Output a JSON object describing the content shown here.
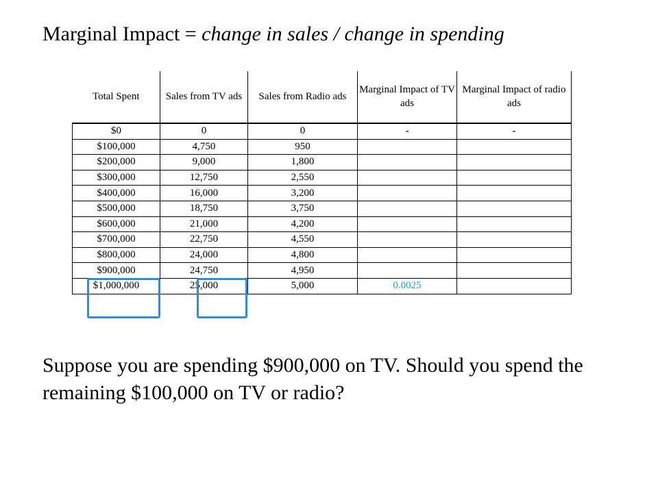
{
  "title": {
    "prefix": "Marginal Impact = ",
    "italic": "change in sales  / change in spending"
  },
  "table": {
    "headers": [
      "Total Spent",
      "Sales from TV ads",
      "Sales from Radio ads",
      "Marginal Impact of TV ads",
      "Marginal Impact of radio ads"
    ],
    "rows": [
      [
        "$0",
        "0",
        "0",
        "-",
        "-"
      ],
      [
        "$100,000",
        "4,750",
        "950",
        "",
        ""
      ],
      [
        "$200,000",
        "9,000",
        "1,800",
        "",
        ""
      ],
      [
        "$300,000",
        "12,750",
        "2,550",
        "",
        ""
      ],
      [
        "$400,000",
        "16,000",
        "3,200",
        "",
        ""
      ],
      [
        "$500,000",
        "18,750",
        "3,750",
        "",
        ""
      ],
      [
        "$600,000",
        "21,000",
        "4,200",
        "",
        ""
      ],
      [
        "$700,000",
        "22,750",
        "4,550",
        "",
        ""
      ],
      [
        "$800,000",
        "24,000",
        "4,800",
        "",
        ""
      ],
      [
        "$900,000",
        "24,750",
        "4,950",
        "",
        ""
      ],
      [
        "$1,000,000",
        "25,000",
        "5,000",
        "0.0025",
        ""
      ]
    ],
    "highlight_color": "#2a8fd6",
    "answer_color": "#1aa3c7"
  },
  "question": "Suppose you are spending $900,000 on TV. Should you spend the remaining $100,000 on TV or radio?"
}
